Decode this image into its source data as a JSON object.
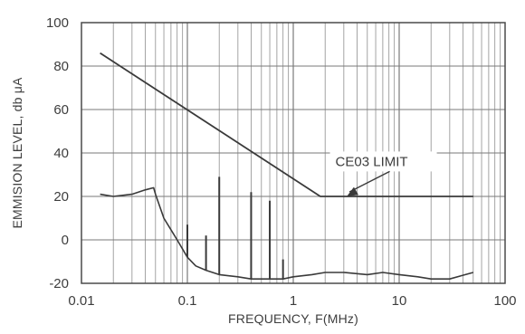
{
  "chart_data": {
    "type": "line",
    "title": "",
    "xlabel": "FREQUENCY, F(MHz)",
    "ylabel": "EMMISION LEVEL, db μA",
    "xscale": "log",
    "xlim": [
      0.01,
      100
    ],
    "ylim": [
      -20,
      100
    ],
    "x_ticks": [
      0.01,
      0.1,
      1,
      10,
      100
    ],
    "x_tick_labels": [
      "0.01",
      "0.1",
      "1",
      "10",
      "100"
    ],
    "y_ticks": [
      -20,
      0,
      20,
      40,
      60,
      80,
      100
    ],
    "y_tick_labels": [
      "-20",
      "0",
      "20",
      "40",
      "60",
      "80",
      "100"
    ],
    "grid": true,
    "series": [
      {
        "name": "CE03 LIMIT",
        "x": [
          0.015,
          1.8,
          1.8,
          50
        ],
        "y": [
          86,
          20,
          20,
          20
        ]
      },
      {
        "x": [
          0.015,
          0.02,
          0.03,
          0.04,
          0.048,
          0.05,
          0.06,
          0.08,
          0.1,
          0.12,
          0.15,
          0.2,
          0.3,
          0.4,
          0.5,
          0.6,
          0.8,
          1,
          1.5,
          2,
          3,
          5,
          7,
          10,
          15,
          20,
          30,
          50
        ],
        "y": [
          21,
          20,
          21,
          23,
          24,
          21,
          10,
          0,
          -8,
          -12,
          -14,
          -16,
          -17,
          -18,
          -18,
          -18,
          -18,
          -17,
          -16,
          -15,
          -15,
          -16,
          -15,
          -16,
          -17,
          -18,
          -18,
          -15
        ]
      }
    ],
    "spikes": [
      {
        "x": 0.1,
        "y": 7
      },
      {
        "x": 0.15,
        "y": 2
      },
      {
        "x": 0.2,
        "y": 29
      },
      {
        "x": 0.4,
        "y": 22
      },
      {
        "x": 0.6,
        "y": 18
      },
      {
        "x": 0.8,
        "y": -9
      }
    ],
    "annotations": [
      {
        "text": "CE03 LIMIT",
        "x": 2.5,
        "y": 34,
        "arrow_to": {
          "x": 3.2,
          "y": 20
        }
      }
    ]
  }
}
